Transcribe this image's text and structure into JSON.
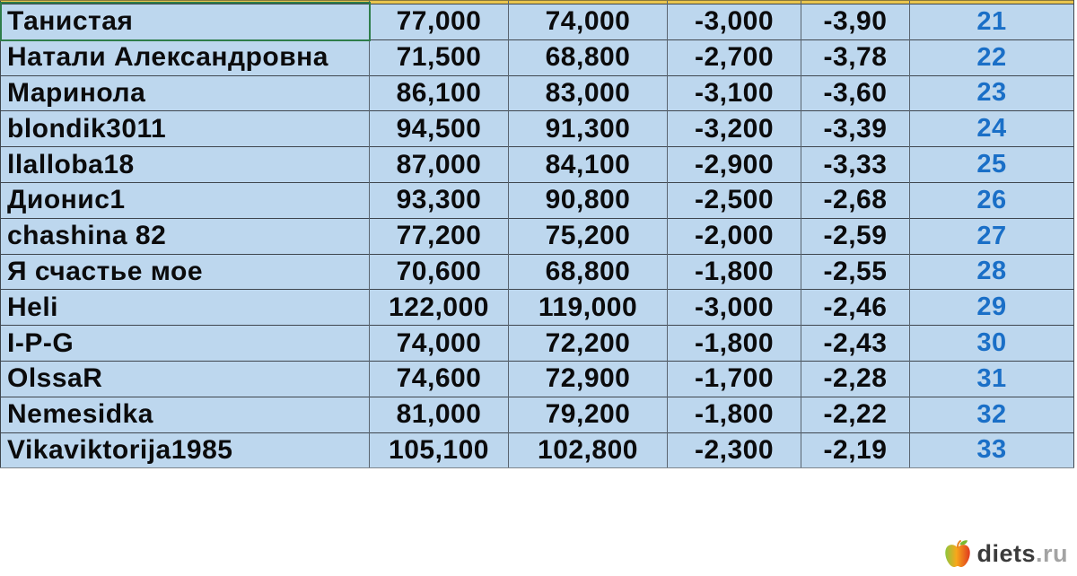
{
  "table": {
    "column_keys": [
      "name",
      "start_weight",
      "current_weight",
      "loss",
      "loss_percent",
      "rank"
    ],
    "rows": [
      {
        "name": "Танистая",
        "start_weight": "77,000",
        "current_weight": "74,000",
        "loss": "-3,000",
        "loss_percent": "-3,90",
        "rank": "21"
      },
      {
        "name": "Натали Александровна",
        "start_weight": "71,500",
        "current_weight": "68,800",
        "loss": "-2,700",
        "loss_percent": "-3,78",
        "rank": "22"
      },
      {
        "name": "Маринола",
        "start_weight": "86,100",
        "current_weight": "83,000",
        "loss": "-3,100",
        "loss_percent": "-3,60",
        "rank": "23"
      },
      {
        "name": "blondik3011",
        "start_weight": "94,500",
        "current_weight": "91,300",
        "loss": "-3,200",
        "loss_percent": "-3,39",
        "rank": "24"
      },
      {
        "name": "llalloba18",
        "start_weight": "87,000",
        "current_weight": "84,100",
        "loss": "-2,900",
        "loss_percent": "-3,33",
        "rank": "25"
      },
      {
        "name": "Дионис1",
        "start_weight": "93,300",
        "current_weight": "90,800",
        "loss": "-2,500",
        "loss_percent": "-2,68",
        "rank": "26"
      },
      {
        "name": "chashina 82",
        "start_weight": "77,200",
        "current_weight": "75,200",
        "loss": "-2,000",
        "loss_percent": "-2,59",
        "rank": "27"
      },
      {
        "name": "Я счастье мое",
        "start_weight": "70,600",
        "current_weight": "68,800",
        "loss": "-1,800",
        "loss_percent": "-2,55",
        "rank": "28"
      },
      {
        "name": "Heli",
        "start_weight": "122,000",
        "current_weight": "119,000",
        "loss": "-3,000",
        "loss_percent": "-2,46",
        "rank": "29"
      },
      {
        "name": "I-P-G",
        "start_weight": "74,000",
        "current_weight": "72,200",
        "loss": "-1,800",
        "loss_percent": "-2,43",
        "rank": "30"
      },
      {
        "name": "OlssaR",
        "start_weight": "74,600",
        "current_weight": "72,900",
        "loss": "-1,700",
        "loss_percent": "-2,28",
        "rank": "31"
      },
      {
        "name": "Nemesidka",
        "start_weight": "81,000",
        "current_weight": "79,200",
        "loss": "-1,800",
        "loss_percent": "-2,22",
        "rank": "32"
      },
      {
        "name": "Vikaviktorija1985",
        "start_weight": "105,100",
        "current_weight": "102,800",
        "loss": "-2,300",
        "loss_percent": "-2,19",
        "rank": "33"
      }
    ]
  },
  "selection": {
    "selected_cell_text": "Танистая"
  },
  "logo": {
    "brand": "diets",
    "tld": ".ru"
  },
  "colors": {
    "row_bg": "#bdd7ee",
    "grid_h": "#3f464e",
    "grid_v": "#5a6570",
    "gold": "#e9c54e",
    "sel_green": "#2e7d4a",
    "rank_blue": "#1a6fc7"
  }
}
